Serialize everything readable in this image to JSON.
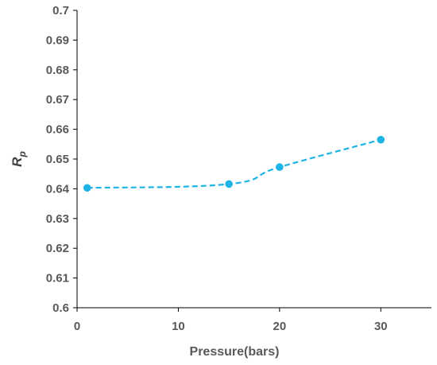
{
  "chart_data": {
    "type": "line",
    "title": "",
    "xlabel": "Pressure(bars)",
    "ylabel": {
      "main": "R",
      "sub": "p"
    },
    "xlim": [
      0,
      35
    ],
    "ylim": [
      0.6,
      0.7
    ],
    "xticks": [
      0,
      10,
      20,
      30
    ],
    "yticks": [
      "0.6",
      "0.61",
      "0.62",
      "0.63",
      "0.64",
      "0.65",
      "0.66",
      "0.67",
      "0.68",
      "0.69",
      "0.7"
    ],
    "grid": false,
    "legend": "none",
    "series": [
      {
        "color": "#1fb4e6",
        "line_style": "dashed",
        "x": [
          1,
          15,
          20,
          30
        ],
        "y": [
          0.6403,
          0.6416,
          0.6473,
          0.6565
        ]
      }
    ]
  }
}
